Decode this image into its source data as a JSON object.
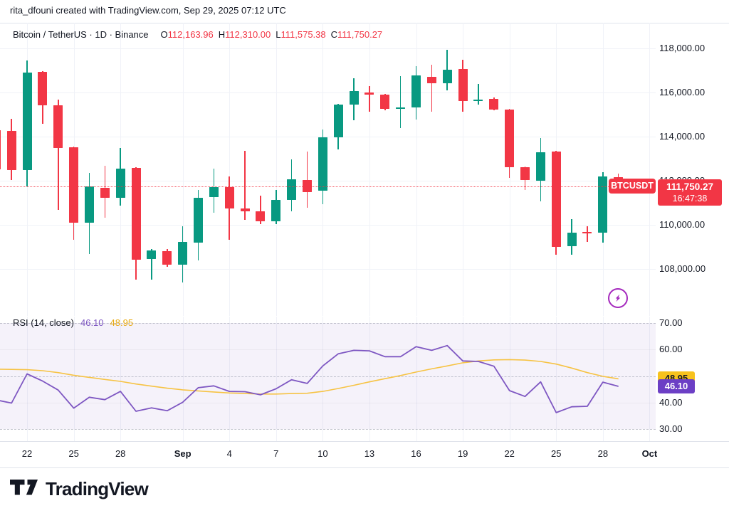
{
  "attribution": "rita_dfouni created with TradingView.com, Sep 29, 2025 07:12 UTC",
  "legend": {
    "symbol_title": "Bitcoin / TetherUS · 1D · Binance",
    "ohlc": [
      {
        "k": "O",
        "v": "112,163.96"
      },
      {
        "k": "H",
        "v": "112,310.00"
      },
      {
        "k": "L",
        "v": "111,575.38"
      },
      {
        "k": "C",
        "v": "111,750.27"
      }
    ]
  },
  "rsi_legend": {
    "title": "RSI (14, close)",
    "value": "46.10",
    "ma_value": "48.95"
  },
  "price_label": {
    "symbol": "BTCUSDT",
    "price": "111,750.27",
    "countdown": "16:47:38"
  },
  "price_axis": {
    "ticks": [
      {
        "text": "118,000.00",
        "value": 118000
      },
      {
        "text": "116,000.00",
        "value": 116000
      },
      {
        "text": "114,000.00",
        "value": 114000
      },
      {
        "text": "112,000.00",
        "value": 112000
      },
      {
        "text": "110,000.00",
        "value": 110000
      },
      {
        "text": "108,000.00",
        "value": 108000
      }
    ]
  },
  "rsi_axis": {
    "ticks": [
      {
        "text": "70.00",
        "value": 70
      },
      {
        "text": "60.00",
        "value": 60
      },
      {
        "text": "40.00",
        "value": 40
      },
      {
        "text": "30.00",
        "value": 30
      }
    ],
    "ma_badge": {
      "text": "48.95",
      "value": 48.95,
      "bg": "#F7C21E",
      "fg": "#131722"
    },
    "value_badge": {
      "text": "46.10",
      "value": 46.1,
      "bg": "#6C3FC5",
      "fg": "#ffffff"
    }
  },
  "time_axis": {
    "ticks": [
      {
        "label": "22",
        "i": 2,
        "bold": false
      },
      {
        "label": "25",
        "i": 5,
        "bold": false
      },
      {
        "label": "28",
        "i": 8,
        "bold": false
      },
      {
        "label": "Sep",
        "i": 12,
        "bold": true
      },
      {
        "label": "4",
        "i": 15,
        "bold": false
      },
      {
        "label": "7",
        "i": 18,
        "bold": false
      },
      {
        "label": "10",
        "i": 21,
        "bold": false
      },
      {
        "label": "13",
        "i": 24,
        "bold": false
      },
      {
        "label": "16",
        "i": 27,
        "bold": false
      },
      {
        "label": "19",
        "i": 30,
        "bold": false
      },
      {
        "label": "22",
        "i": 33,
        "bold": false
      },
      {
        "label": "25",
        "i": 36,
        "bold": false
      },
      {
        "label": "28",
        "i": 39,
        "bold": false
      },
      {
        "label": "Oct",
        "i": 42,
        "bold": true
      }
    ]
  },
  "colors": {
    "up": "#089981",
    "down": "#F23645",
    "text": "#131722",
    "border": "#E0E3EB",
    "grid": "#F0F2F8",
    "rsi_line": "#7E57C2",
    "rsi_ma": "#F6C344",
    "boost": "#A428BD",
    "current_price": "#F23645"
  },
  "logo": {
    "text": "TradingView"
  },
  "chart_data": [
    {
      "type": "candlestick",
      "title": "Bitcoin / TetherUS · 1D · Binance",
      "ylim": [
        105800,
        119200
      ],
      "y_ticks": [
        118000,
        116000,
        114000,
        112000,
        110000,
        108000
      ],
      "current_price": 111750.27,
      "up_color": "#089981",
      "down_color": "#F23645",
      "dates": [
        "Aug 20",
        "Aug 21",
        "Aug 22",
        "Aug 23",
        "Aug 24",
        "Aug 25",
        "Aug 26",
        "Aug 27",
        "Aug 28",
        "Aug 29",
        "Aug 30",
        "Aug 31",
        "Sep 1",
        "Sep 2",
        "Sep 3",
        "Sep 4",
        "Sep 5",
        "Sep 6",
        "Sep 7",
        "Sep 8",
        "Sep 9",
        "Sep 10",
        "Sep 11",
        "Sep 12",
        "Sep 13",
        "Sep 14",
        "Sep 15",
        "Sep 16",
        "Sep 17",
        "Sep 18",
        "Sep 19",
        "Sep 20",
        "Sep 21",
        "Sep 22",
        "Sep 23",
        "Sep 24",
        "Sep 25",
        "Sep 26",
        "Sep 27",
        "Sep 28",
        "Sep 29"
      ],
      "ohlc": [
        [
          114300,
          114800,
          112000,
          112500
        ],
        [
          114250,
          114800,
          112030,
          112480
        ],
        [
          112480,
          117450,
          111740,
          116900
        ],
        [
          116930,
          116980,
          114580,
          115420
        ],
        [
          115420,
          115680,
          110680,
          113480
        ],
        [
          113520,
          113560,
          109320,
          110100
        ],
        [
          110100,
          112360,
          108680,
          111740
        ],
        [
          111680,
          112680,
          110320,
          111230
        ],
        [
          111230,
          113480,
          110870,
          112550
        ],
        [
          112580,
          112620,
          107520,
          108420
        ],
        [
          108450,
          108900,
          107520,
          108840
        ],
        [
          108820,
          108900,
          108100,
          108200
        ],
        [
          108200,
          109930,
          107400,
          109230
        ],
        [
          109190,
          111590,
          108390,
          111220
        ],
        [
          111270,
          112560,
          110540,
          111700
        ],
        [
          111720,
          112180,
          109330,
          110730
        ],
        [
          110740,
          113370,
          110220,
          110620
        ],
        [
          110620,
          111320,
          110030,
          110170
        ],
        [
          110160,
          111590,
          110030,
          111130
        ],
        [
          111130,
          112960,
          110620,
          112080
        ],
        [
          112040,
          113310,
          110760,
          111480
        ],
        [
          111540,
          114330,
          110950,
          113980
        ],
        [
          113960,
          115470,
          113420,
          115450
        ],
        [
          115450,
          116650,
          114740,
          116070
        ],
        [
          116010,
          116290,
          115130,
          115910
        ],
        [
          115900,
          115950,
          115190,
          115260
        ],
        [
          115260,
          116740,
          114390,
          115320
        ],
        [
          115320,
          117200,
          114770,
          116770
        ],
        [
          116710,
          117260,
          115140,
          116420
        ],
        [
          116420,
          117930,
          116100,
          117030
        ],
        [
          117060,
          117480,
          115140,
          115610
        ],
        [
          115600,
          116390,
          115450,
          115680
        ],
        [
          115710,
          115760,
          115200,
          115230
        ],
        [
          115220,
          115260,
          112130,
          112610
        ],
        [
          112610,
          112650,
          111590,
          112040
        ],
        [
          111990,
          113940,
          111080,
          113290
        ],
        [
          113310,
          113350,
          108640,
          108990
        ],
        [
          109030,
          110250,
          108660,
          109660
        ],
        [
          109680,
          109950,
          109230,
          109630
        ],
        [
          109650,
          112390,
          109190,
          112190
        ],
        [
          112163.96,
          112310,
          111575.38,
          111750.27
        ]
      ]
    },
    {
      "type": "line",
      "title": "RSI (14, close)",
      "levels": [
        70,
        50,
        30
      ],
      "y_ticks": [
        70,
        60,
        40,
        30
      ],
      "ylim": [
        26,
        72
      ],
      "band_fill": "rgba(126,87,194,0.08)",
      "series": [
        {
          "name": "RSI",
          "color": "#7E57C2",
          "last": 46.1,
          "values": [
            41.0,
            39.8,
            50.8,
            48.1,
            44.7,
            37.9,
            42.0,
            41.1,
            44.2,
            36.7,
            38.0,
            36.9,
            40.1,
            45.6,
            46.3,
            44.2,
            44.1,
            42.9,
            45.2,
            48.6,
            47.2,
            53.8,
            58.4,
            59.7,
            59.5,
            57.3,
            57.3,
            61.1,
            59.7,
            61.5,
            55.7,
            55.5,
            53.7,
            44.5,
            42.3,
            47.8,
            36.2,
            38.4,
            38.6,
            47.7,
            46.1
          ]
        },
        {
          "name": "RSI-based MA",
          "color": "#F6C344",
          "last": 48.95,
          "values": [
            52.6,
            52.5,
            52.4,
            52.0,
            51.3,
            50.3,
            49.5,
            48.7,
            48.0,
            47.0,
            46.2,
            45.4,
            44.8,
            44.4,
            44.0,
            43.6,
            43.4,
            43.2,
            43.2,
            43.4,
            43.5,
            44.2,
            45.3,
            46.5,
            47.8,
            49.0,
            50.2,
            51.5,
            52.7,
            53.8,
            55.0,
            55.7,
            56.1,
            56.2,
            56.0,
            55.5,
            54.5,
            53.0,
            51.3,
            49.9,
            48.95
          ]
        }
      ]
    }
  ]
}
